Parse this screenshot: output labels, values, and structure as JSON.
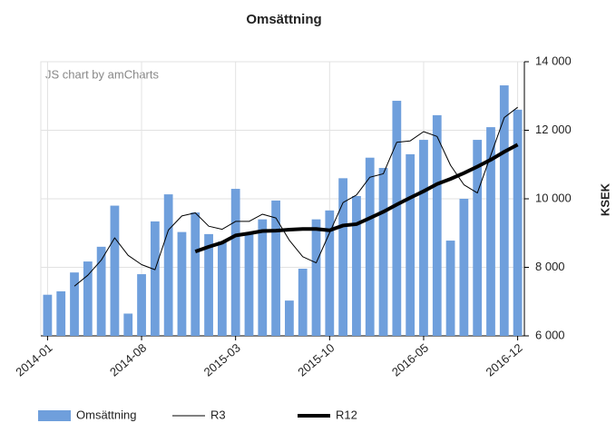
{
  "chart_data": {
    "type": "bar",
    "title": "Omsättning",
    "watermark": "JS chart by amCharts",
    "y_axis_label": "KSEK",
    "categories": [
      "2014-01",
      null,
      null,
      null,
      null,
      null,
      null,
      "2014-08",
      null,
      null,
      null,
      null,
      null,
      null,
      "2015-03",
      null,
      null,
      null,
      null,
      null,
      null,
      "2015-10",
      null,
      null,
      null,
      null,
      null,
      null,
      "2016-05",
      null,
      null,
      null,
      null,
      null,
      null,
      "2016-12"
    ],
    "series": [
      {
        "name": "Omsättning",
        "type": "bar",
        "color": "#6f9fdc",
        "values": [
          7200,
          7300,
          7850,
          8170,
          8600,
          9800,
          6650,
          7800,
          9340,
          10130,
          9030,
          9600,
          8970,
          8750,
          10290,
          8970,
          9400,
          9950,
          7030,
          7960,
          9400,
          9660,
          10600,
          10080,
          11200,
          10900,
          12860,
          11300,
          11720,
          12440,
          8780,
          10000,
          11720,
          12090,
          13310,
          12600
        ]
      },
      {
        "name": "R3",
        "type": "line",
        "color": "#000000",
        "width": 1,
        "values": [
          null,
          null,
          7450,
          7770,
          8210,
          8860,
          8350,
          8080,
          7930,
          9090,
          9500,
          9590,
          9200,
          9110,
          9340,
          9340,
          9550,
          9440,
          8790,
          8310,
          8130,
          9010,
          9890,
          10110,
          10630,
          10730,
          11650,
          11690,
          11960,
          11820,
          10980,
          10410,
          10170,
          11270,
          12370,
          12670
        ]
      },
      {
        "name": "R12",
        "type": "line",
        "color": "#000000",
        "width": 4,
        "values": [
          null,
          null,
          null,
          null,
          null,
          null,
          null,
          null,
          null,
          null,
          null,
          8460,
          8600,
          8720,
          8930,
          8990,
          9060,
          9070,
          9100,
          9120,
          9120,
          9080,
          9220,
          9260,
          9440,
          9620,
          9830,
          10030,
          10220,
          10430,
          10580,
          10750,
          10940,
          11140,
          11370,
          11580
        ]
      }
    ],
    "ylim": [
      6000,
      14000
    ],
    "yticks": [
      {
        "value": 6000,
        "label": "6 000"
      },
      {
        "value": 8000,
        "label": "8 000"
      },
      {
        "value": 10000,
        "label": "10 000"
      },
      {
        "value": 12000,
        "label": "12 000"
      },
      {
        "value": 14000,
        "label": "14 000"
      }
    ],
    "grid": true
  }
}
